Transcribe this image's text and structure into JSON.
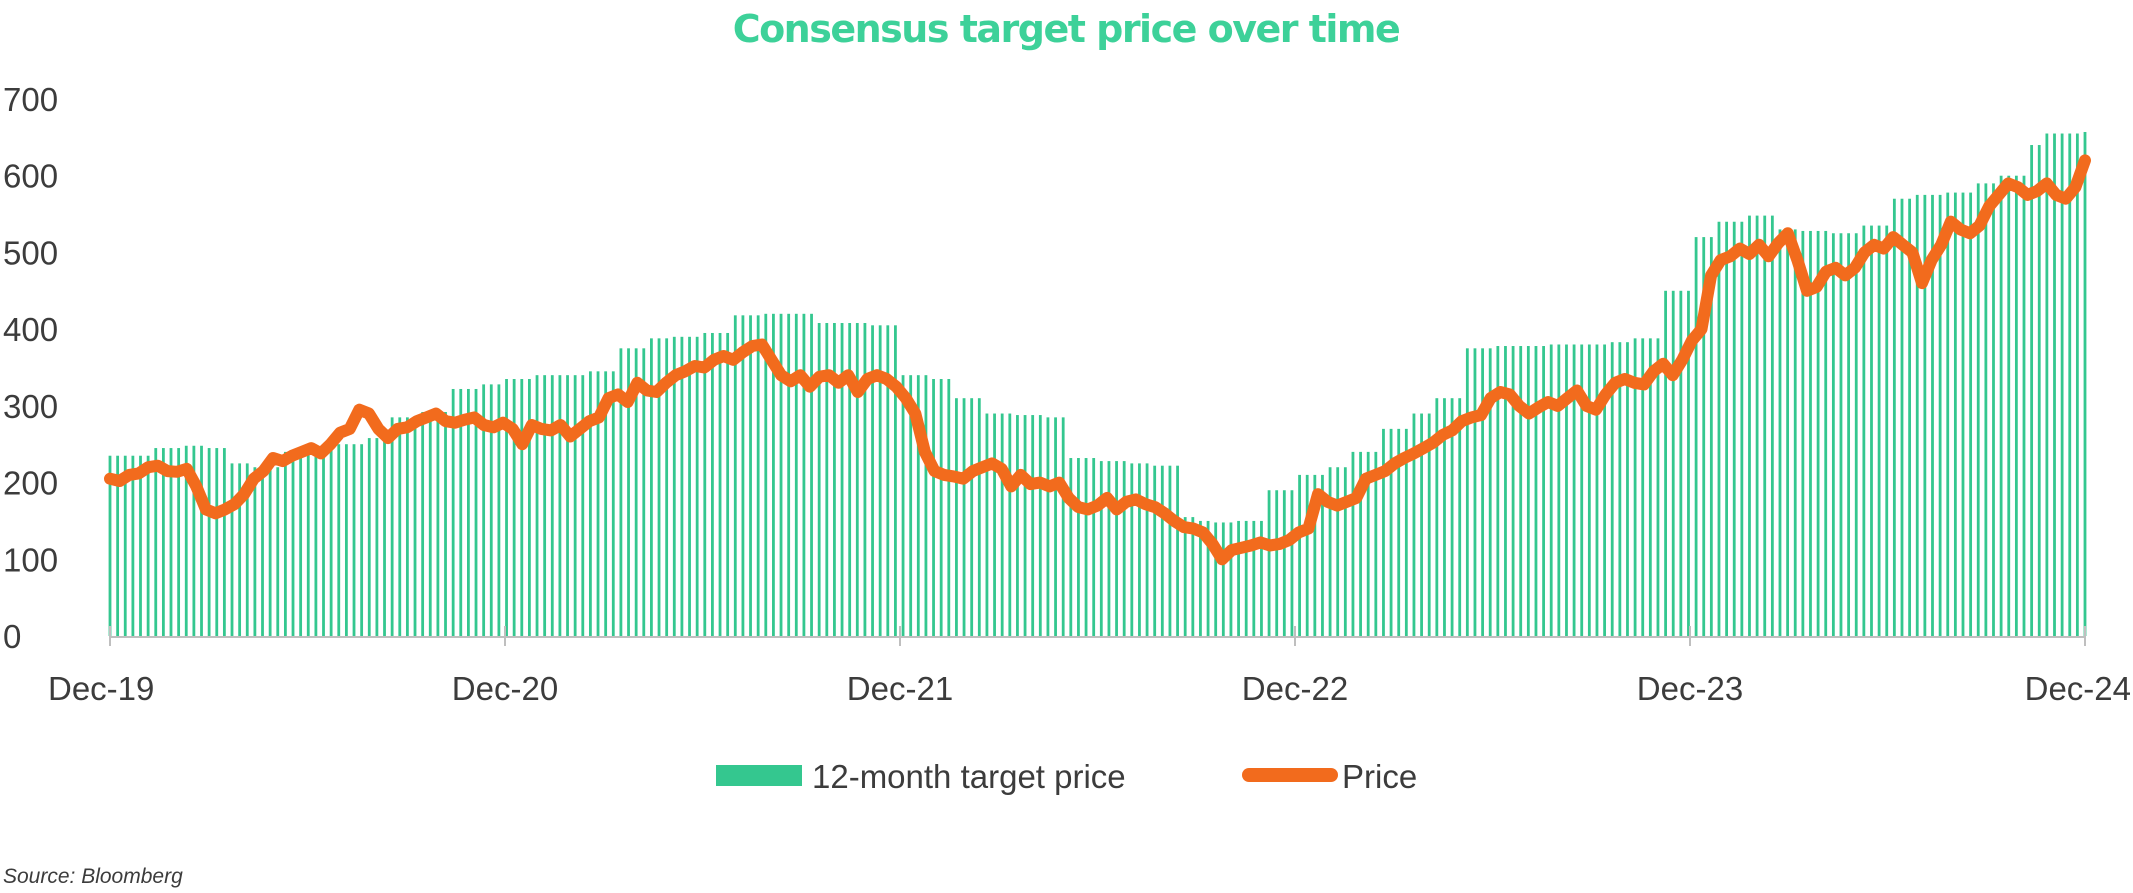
{
  "chart_data": {
    "type": "bar+line",
    "title": "Consensus target price over time",
    "source": "Source: Bloomberg",
    "ylim": [
      0,
      700
    ],
    "y_ticks": [
      "0",
      "100",
      "200",
      "300",
      "400",
      "500",
      "600",
      "700"
    ],
    "x_tick_labels": [
      "Dec-19",
      "Dec-20",
      "Dec-21",
      "Dec-22",
      "Dec-23",
      "Dec-24"
    ],
    "x_range_months": [
      "Dec-19",
      "Dec-24"
    ],
    "grid": false,
    "legend_position": "bottom-center",
    "colors": {
      "title": "#3dd199",
      "target_bars": "#34c78f",
      "price_line": "#f26b1d",
      "axis": "#bfbfbf"
    },
    "series": [
      {
        "name": "12-month target price",
        "kind": "bar",
        "points": [
          [
            0,
            235
          ],
          [
            1.5,
            245
          ],
          [
            2.5,
            248
          ],
          [
            3.5,
            245
          ],
          [
            4.2,
            225
          ],
          [
            5,
            220
          ],
          [
            6,
            240
          ],
          [
            7,
            245
          ],
          [
            8,
            250
          ],
          [
            9,
            258
          ],
          [
            10,
            285
          ],
          [
            11,
            292
          ],
          [
            12,
            322
          ],
          [
            13,
            328
          ],
          [
            14,
            335
          ],
          [
            15,
            340
          ],
          [
            16,
            340
          ],
          [
            17,
            345
          ],
          [
            18,
            375
          ],
          [
            19,
            388
          ],
          [
            20,
            390
          ],
          [
            21,
            395
          ],
          [
            22,
            418
          ],
          [
            23,
            420
          ],
          [
            24,
            420
          ],
          [
            25,
            408
          ],
          [
            26,
            408
          ],
          [
            27,
            405
          ],
          [
            28,
            340
          ],
          [
            29,
            335
          ],
          [
            30,
            310
          ],
          [
            31,
            290
          ],
          [
            32,
            288
          ],
          [
            33,
            285
          ],
          [
            34,
            232
          ],
          [
            35,
            228
          ],
          [
            36,
            225
          ],
          [
            37,
            222
          ],
          [
            38,
            155
          ],
          [
            38.5,
            150
          ],
          [
            39,
            148
          ],
          [
            40,
            150
          ],
          [
            41,
            190
          ],
          [
            42,
            210
          ],
          [
            43,
            220
          ],
          [
            44,
            240
          ],
          [
            45,
            270
          ],
          [
            46,
            290
          ],
          [
            47,
            310
          ],
          [
            48,
            375
          ],
          [
            49,
            378
          ],
          [
            50,
            378
          ],
          [
            51,
            380
          ],
          [
            52,
            380
          ],
          [
            53,
            383
          ],
          [
            54,
            388
          ],
          [
            55,
            450
          ],
          [
            56,
            520
          ],
          [
            57,
            540
          ],
          [
            58,
            548
          ],
          [
            59,
            530
          ],
          [
            60,
            528
          ],
          [
            61,
            525
          ],
          [
            62,
            535
          ],
          [
            63,
            570
          ],
          [
            64,
            575
          ],
          [
            65,
            578
          ],
          [
            66,
            590
          ],
          [
            67,
            600
          ],
          [
            68,
            640
          ],
          [
            68.5,
            655
          ],
          [
            69,
            655
          ],
          [
            70,
            657
          ]
        ]
      },
      {
        "name": "Price",
        "kind": "line",
        "points": [
          [
            0,
            205
          ],
          [
            0.5,
            202
          ],
          [
            1,
            210
          ],
          [
            1.5,
            212
          ],
          [
            2,
            220
          ],
          [
            2.5,
            222
          ],
          [
            3,
            215
          ],
          [
            3.5,
            214
          ],
          [
            4,
            218
          ],
          [
            4.5,
            195
          ],
          [
            5,
            165
          ],
          [
            5.5,
            160
          ],
          [
            6,
            165
          ],
          [
            6.5,
            172
          ],
          [
            7,
            185
          ],
          [
            7.5,
            205
          ],
          [
            8,
            215
          ],
          [
            8.5,
            232
          ],
          [
            9,
            228
          ],
          [
            9.5,
            235
          ],
          [
            10,
            240
          ],
          [
            10.5,
            245
          ],
          [
            11,
            238
          ],
          [
            11.5,
            250
          ],
          [
            12,
            265
          ],
          [
            12.5,
            270
          ],
          [
            13,
            295
          ],
          [
            13.5,
            290
          ],
          [
            14,
            270
          ],
          [
            14.5,
            258
          ],
          [
            15,
            270
          ],
          [
            15.5,
            272
          ],
          [
            16,
            280
          ],
          [
            16.5,
            285
          ],
          [
            17,
            290
          ],
          [
            17.5,
            280
          ],
          [
            18,
            278
          ],
          [
            18.5,
            282
          ],
          [
            19,
            285
          ],
          [
            19.5,
            275
          ],
          [
            20,
            272
          ],
          [
            20.5,
            278
          ],
          [
            21,
            270
          ],
          [
            21.5,
            250
          ],
          [
            22,
            275
          ],
          [
            22.5,
            270
          ],
          [
            23,
            268
          ],
          [
            23.5,
            275
          ],
          [
            24,
            260
          ],
          [
            24.5,
            270
          ],
          [
            25,
            280
          ],
          [
            25.5,
            285
          ],
          [
            26,
            310
          ],
          [
            26.5,
            315
          ],
          [
            27,
            305
          ],
          [
            27.5,
            330
          ],
          [
            28,
            320
          ],
          [
            28.5,
            318
          ],
          [
            29,
            330
          ],
          [
            29.5,
            340
          ],
          [
            30,
            345
          ],
          [
            30.5,
            352
          ],
          [
            31,
            350
          ],
          [
            31.5,
            360
          ],
          [
            32,
            365
          ],
          [
            32.5,
            360
          ],
          [
            33,
            370
          ],
          [
            33.5,
            378
          ],
          [
            34,
            380
          ],
          [
            34.5,
            360
          ],
          [
            35,
            340
          ],
          [
            35.5,
            332
          ],
          [
            36,
            340
          ],
          [
            36.5,
            325
          ],
          [
            37,
            338
          ],
          [
            37.5,
            340
          ],
          [
            38,
            330
          ],
          [
            38.5,
            340
          ],
          [
            39,
            318
          ],
          [
            39.5,
            335
          ],
          [
            40,
            340
          ],
          [
            40.5,
            335
          ],
          [
            41,
            325
          ],
          [
            41.5,
            310
          ],
          [
            42,
            290
          ],
          [
            42.5,
            240
          ],
          [
            43,
            215
          ],
          [
            43.5,
            210
          ],
          [
            44,
            208
          ],
          [
            44.5,
            205
          ],
          [
            45,
            215
          ],
          [
            45.5,
            220
          ],
          [
            46,
            225
          ],
          [
            46.5,
            218
          ],
          [
            47,
            195
          ],
          [
            47.5,
            210
          ],
          [
            48,
            198
          ],
          [
            48.5,
            200
          ],
          [
            49,
            195
          ],
          [
            49.5,
            200
          ],
          [
            50,
            180
          ],
          [
            50.5,
            168
          ],
          [
            51,
            165
          ],
          [
            51.5,
            170
          ],
          [
            52,
            180
          ],
          [
            52.5,
            165
          ],
          [
            53,
            175
          ],
          [
            53.5,
            178
          ],
          [
            54,
            172
          ],
          [
            54.5,
            168
          ],
          [
            55,
            160
          ],
          [
            55.5,
            150
          ],
          [
            56,
            142
          ],
          [
            56.5,
            140
          ],
          [
            57,
            135
          ],
          [
            57.5,
            120
          ],
          [
            58,
            100
          ],
          [
            58.5,
            112
          ],
          [
            59,
            115
          ],
          [
            59.5,
            118
          ],
          [
            60,
            122
          ],
          [
            60.5,
            118
          ],
          [
            61,
            120
          ],
          [
            61.5,
            125
          ],
          [
            62,
            135
          ],
          [
            62.5,
            140
          ],
          [
            63,
            185
          ],
          [
            63.5,
            175
          ],
          [
            64,
            170
          ],
          [
            64.5,
            175
          ],
          [
            65,
            180
          ],
          [
            65.5,
            205
          ],
          [
            66,
            210
          ],
          [
            66.5,
            215
          ],
          [
            67,
            225
          ],
          [
            67.5,
            232
          ],
          [
            68,
            238
          ],
          [
            68.5,
            245
          ],
          [
            69,
            252
          ],
          [
            69.5,
            262
          ],
          [
            70,
            268
          ],
          [
            70.5,
            280
          ],
          [
            71,
            285
          ],
          [
            71.5,
            288
          ],
          [
            72,
            310
          ],
          [
            72.5,
            318
          ],
          [
            73,
            315
          ],
          [
            73.5,
            300
          ],
          [
            74,
            290
          ],
          [
            74.5,
            298
          ],
          [
            75,
            305
          ],
          [
            75.5,
            300
          ],
          [
            76,
            310
          ],
          [
            76.5,
            320
          ],
          [
            77,
            300
          ],
          [
            77.5,
            295
          ],
          [
            78,
            315
          ],
          [
            78.5,
            330
          ],
          [
            79,
            335
          ],
          [
            79.5,
            330
          ],
          [
            80,
            328
          ],
          [
            80.5,
            345
          ],
          [
            81,
            355
          ],
          [
            81.5,
            340
          ],
          [
            82,
            360
          ],
          [
            82.5,
            385
          ],
          [
            83,
            400
          ],
          [
            83.5,
            470
          ],
          [
            84,
            490
          ],
          [
            84.5,
            495
          ],
          [
            85,
            505
          ],
          [
            85.5,
            498
          ],
          [
            86,
            510
          ],
          [
            86.5,
            495
          ],
          [
            87,
            512
          ],
          [
            87.5,
            525
          ],
          [
            88,
            490
          ],
          [
            88.5,
            450
          ],
          [
            89,
            455
          ],
          [
            89.5,
            475
          ],
          [
            90,
            480
          ],
          [
            90.5,
            470
          ],
          [
            91,
            480
          ],
          [
            91.5,
            500
          ],
          [
            92,
            510
          ],
          [
            92.5,
            505
          ],
          [
            93,
            520
          ],
          [
            93.5,
            510
          ],
          [
            94,
            500
          ],
          [
            94.5,
            460
          ],
          [
            95,
            490
          ],
          [
            95.5,
            510
          ],
          [
            96,
            540
          ],
          [
            96.5,
            530
          ],
          [
            97,
            525
          ],
          [
            97.5,
            535
          ],
          [
            98,
            560
          ],
          [
            98.5,
            575
          ],
          [
            99,
            590
          ],
          [
            99.5,
            585
          ],
          [
            100,
            575
          ],
          [
            100.5,
            580
          ],
          [
            101,
            590
          ],
          [
            101.5,
            575
          ],
          [
            102,
            570
          ],
          [
            102.5,
            585
          ],
          [
            103,
            620
          ]
        ]
      }
    ]
  }
}
